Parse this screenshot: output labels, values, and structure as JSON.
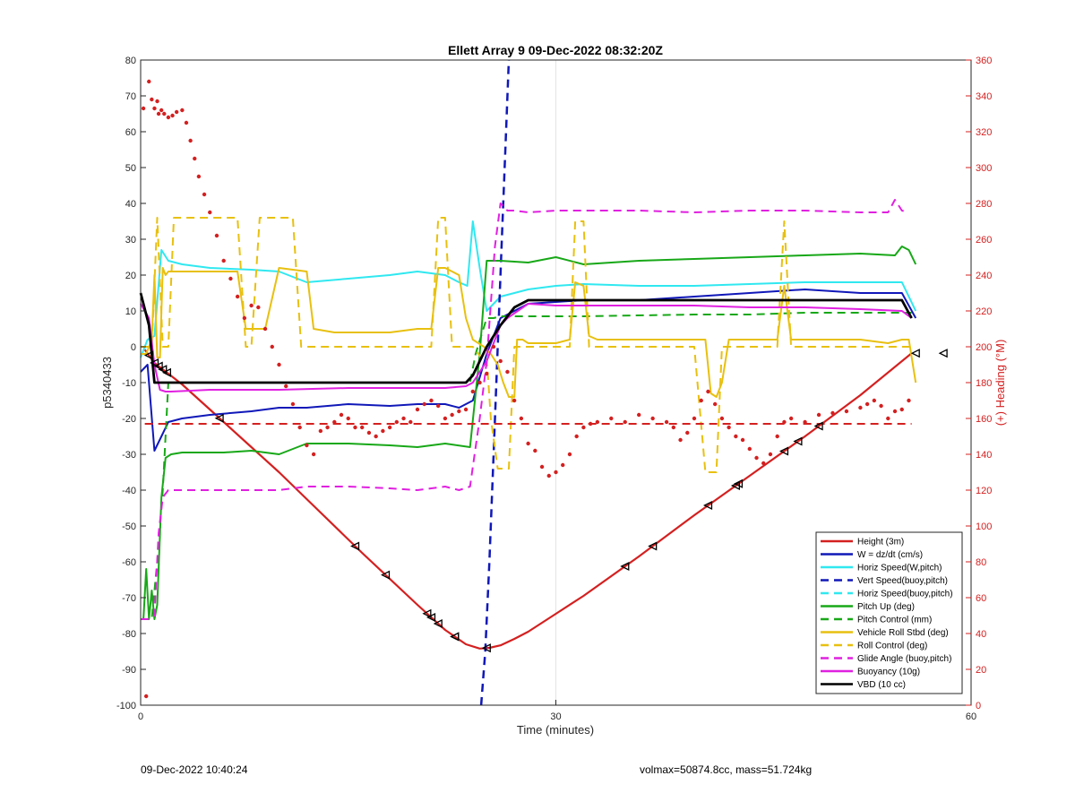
{
  "chart_data": {
    "type": "line",
    "title": "Ellett Array 9 09-Dec-2022 08:32:20Z",
    "xlabel": "Time (minutes)",
    "ylabel": "p5340433",
    "y2label": "(+) Heading (°M)",
    "xlim": [
      0,
      60
    ],
    "ylim": [
      -100,
      80
    ],
    "y2lim": [
      0,
      360
    ],
    "x_ticks": [
      0,
      30,
      60
    ],
    "y_ticks": [
      -100,
      -90,
      -80,
      -70,
      -60,
      -50,
      -40,
      -30,
      -20,
      -10,
      0,
      10,
      20,
      30,
      40,
      50,
      60,
      70,
      80
    ],
    "y2_ticks": [
      0,
      20,
      40,
      60,
      80,
      100,
      120,
      140,
      160,
      180,
      200,
      220,
      240,
      260,
      280,
      300,
      320,
      340,
      360
    ],
    "grid": "x only (at 30)",
    "legend_position": "bottom-right",
    "colors": {
      "red": "#d42020",
      "blue": "#1018b8",
      "cyan": "#30e8f0",
      "green": "#18a818",
      "yellow": "#e8c010",
      "magenta": "#e020e0",
      "black": "#000000"
    },
    "series": [
      {
        "name": "Height (3m)",
        "color": "#d42020",
        "style": "solid",
        "width": 2.2,
        "x": [
          0.3,
          1.0,
          2.0,
          3.0,
          5.0,
          8.0,
          10.0,
          12.0,
          16.0,
          20.0,
          22.0,
          23.5,
          24.5,
          25.2,
          26.0,
          27.0,
          28.0,
          30.0,
          32.0,
          36.0,
          40.0,
          44.0,
          48.0,
          52.0,
          55.7
        ],
        "y": [
          -0.8,
          -4.5,
          -7.5,
          -10.5,
          -17.5,
          -28.0,
          -35.0,
          -42.5,
          -57.5,
          -72.0,
          -79.0,
          -83.0,
          -84.2,
          -84.0,
          -83.3,
          -81.5,
          -79.5,
          -74.5,
          -69.5,
          -58.5,
          -47.0,
          -36.0,
          -25.0,
          -13.5,
          -1.8
        ]
      },
      {
        "name": "W = dz/dt (cm/s)",
        "color": "#1018b8",
        "style": "solid",
        "width": 2,
        "x": [
          0.0,
          0.5,
          1.0,
          1.5,
          2.0,
          3.0,
          5.0,
          8.0,
          10.0,
          12.0,
          15.0,
          18.0,
          20.0,
          22.0,
          23.0,
          24.0,
          25.0,
          26.0,
          28.0,
          32.0,
          36.0,
          40.0,
          44.0,
          48.0,
          52.0,
          55.0,
          56.0
        ],
        "y": [
          -7,
          -5,
          -29,
          -25,
          -21,
          -20,
          -19,
          -18,
          -17,
          -17,
          -16,
          -16.5,
          -16,
          -16,
          -17,
          -15,
          -2,
          8,
          12,
          13,
          13,
          14,
          15,
          16,
          15,
          15,
          8
        ]
      },
      {
        "name": "Horiz Speed(W,pitch)",
        "color": "#30e8f0",
        "style": "solid",
        "width": 2,
        "x": [
          0.0,
          0.5,
          1.0,
          1.5,
          2.0,
          3.0,
          5.0,
          8.0,
          10.0,
          12.0,
          15.0,
          18.0,
          20.0,
          22.0,
          23.0,
          23.6,
          24.0,
          24.5,
          25.0,
          26.0,
          27.0,
          28.0,
          30.0,
          32.0,
          36.0,
          40.0,
          44.0,
          48.0,
          52.0,
          55.0,
          56.0
        ],
        "y": [
          -3,
          2,
          3,
          27,
          24,
          23,
          22,
          21.5,
          21,
          18,
          19,
          20,
          21,
          20,
          18,
          17,
          35,
          22,
          10,
          14,
          15,
          16,
          17,
          17.5,
          17,
          17,
          17.5,
          18,
          18,
          18,
          10
        ]
      },
      {
        "name": "Vert Speed(buoy,pitch)",
        "color": "#1018b8",
        "style": "dashed",
        "width": 2.5,
        "x": [
          24.6,
          24.9,
          25.2,
          25.5,
          25.8,
          26.1,
          26.4,
          26.6
        ],
        "y": [
          -100,
          -85,
          -60,
          -30,
          0,
          30,
          60,
          80
        ]
      },
      {
        "name": "Horiz Speed(buoy,pitch)",
        "color": "#30e8f0",
        "style": "dashed",
        "width": 2,
        "x": [],
        "y": []
      },
      {
        "name": "Pitch Up (deg)",
        "color": "#18a818",
        "style": "solid",
        "width": 2,
        "x": [
          0.0,
          0.2,
          0.4,
          0.6,
          0.8,
          1.0,
          1.2,
          1.5,
          1.8,
          2.2,
          3.0,
          6.0,
          8.0,
          10.0,
          12.0,
          15.0,
          18.0,
          20.0,
          22.0,
          23.8,
          24.5,
          25.0,
          25.5,
          26.0,
          28.0,
          30.0,
          32.0,
          36.0,
          40.0,
          44.0,
          48.0,
          52.0,
          54.5,
          55.0,
          55.5,
          56.0
        ],
        "y": [
          -76,
          -76,
          -62,
          -76,
          -68,
          -76,
          -72,
          -42,
          -31,
          -30,
          -29.5,
          -29.5,
          -29,
          -30,
          -27,
          -27,
          -27.5,
          -28,
          -27,
          -28,
          -2,
          24,
          24,
          24,
          23.5,
          25,
          23,
          24,
          24.5,
          25,
          25.5,
          26,
          25.5,
          28,
          27,
          23
        ]
      },
      {
        "name": "Pitch Control (mm)",
        "color": "#18a818",
        "style": "dashed",
        "width": 2,
        "x": [
          0.0,
          0.4,
          0.8,
          1.2,
          1.6,
          2.0,
          5.0,
          10.0,
          15.0,
          20.0,
          23.0,
          23.8,
          24.2,
          25.0,
          25.5,
          26.0,
          28.0,
          32.0,
          40.0,
          44.0,
          48.0,
          52.0,
          55.7
        ],
        "y": [
          -76,
          -76,
          -76,
          -60,
          -40,
          -10,
          -10,
          -10,
          -10,
          -10,
          -10,
          -10,
          -2,
          8,
          8,
          8.5,
          8.5,
          8.5,
          9,
          9,
          9.5,
          9.5,
          9.5
        ]
      },
      {
        "name": "Vehicle Roll Stbd (deg)",
        "color": "#e8c010",
        "style": "solid",
        "width": 2,
        "x": [
          0.0,
          0.4,
          0.8,
          1.0,
          1.2,
          1.4,
          1.6,
          1.8,
          2.0,
          3.0,
          5.0,
          7.0,
          7.6,
          8.0,
          9.0,
          10.0,
          12.0,
          12.5,
          14.0,
          16.0,
          18.0,
          20.0,
          21.0,
          21.5,
          22.0,
          23.0,
          23.5,
          24.0,
          24.8,
          25.3,
          25.8,
          26.2,
          26.6,
          27.0,
          27.2,
          27.6,
          28.0,
          30.0,
          31.0,
          31.4,
          32.0,
          32.4,
          33.0,
          36.0,
          40.0,
          40.8,
          41.2,
          41.6,
          42.0,
          42.5,
          44.0,
          46.0,
          46.5,
          47.0,
          48.0,
          50.0,
          52.0,
          54.0,
          55.0,
          55.5,
          56.0
        ],
        "y": [
          -2,
          -2,
          2,
          20,
          -3,
          -3,
          22,
          20,
          21,
          21,
          21,
          21,
          5,
          5,
          5,
          22,
          21,
          5,
          4,
          4,
          4,
          5,
          5,
          22,
          22,
          20,
          8,
          2,
          0,
          -2,
          -5,
          -10,
          -14,
          -14,
          2,
          2,
          1,
          1,
          2,
          18,
          17,
          3,
          2,
          2,
          2,
          2,
          -13,
          -14,
          -10,
          2,
          2,
          2,
          17,
          2,
          2,
          2,
          2,
          1,
          2,
          2,
          -10
        ]
      },
      {
        "name": "Roll Control (deg)",
        "color": "#e8c010",
        "style": "dashed",
        "width": 2,
        "x": [
          0.0,
          0.8,
          1.2,
          1.6,
          2.0,
          2.4,
          3.0,
          5.0,
          7.0,
          7.6,
          8.0,
          8.6,
          9.0,
          11.0,
          11.6,
          12.0,
          14.0,
          18.0,
          20.0,
          21.0,
          21.5,
          22.0,
          22.5,
          23.0,
          24.0,
          24.6,
          25.0,
          25.3,
          25.8,
          26.2,
          26.6,
          27.0,
          27.2,
          27.6,
          28.0,
          30.0,
          31.0,
          31.4,
          32.0,
          32.4,
          33.0,
          36.0,
          40.0,
          40.8,
          41.2,
          41.6,
          42.0,
          42.5,
          44.0,
          46.0,
          46.5,
          47.0,
          47.5,
          50.0,
          52.0,
          54.0,
          55.0,
          55.7
        ],
        "y": [
          0,
          0,
          36,
          0,
          0,
          36,
          36,
          36,
          36,
          0,
          0,
          36,
          36,
          36,
          0,
          0,
          0,
          0,
          0,
          0,
          36,
          36,
          0,
          0,
          0,
          -3,
          -3,
          -20,
          -34,
          -34,
          -34,
          0,
          0,
          0,
          0,
          0,
          0,
          35,
          35,
          0,
          0,
          0,
          0,
          -35,
          -35,
          -35,
          0,
          0,
          0,
          0,
          35,
          0,
          0,
          0,
          0,
          0,
          0,
          0
        ]
      },
      {
        "name": "Glide Angle (buoy,pitch)",
        "color": "#e020e0",
        "style": "dashed",
        "width": 2,
        "x": [
          0.0,
          0.5,
          1.0,
          1.3,
          1.6,
          2.0,
          3.0,
          5.0,
          8.0,
          10.0,
          12.0,
          15.0,
          18.0,
          20.0,
          22.0,
          23.0,
          23.8,
          24.5,
          25.0,
          25.6,
          26.0,
          26.5,
          27.0,
          28.0,
          30.0,
          32.0,
          36.0,
          40.0,
          44.0,
          48.0,
          52.0,
          54.0,
          54.5,
          55.0,
          55.5
        ],
        "y": [
          -76,
          -76,
          -75,
          -52,
          -42,
          -40,
          -40,
          -40,
          -40,
          -40,
          -39,
          -39,
          -39.5,
          -40,
          -39,
          -40,
          -39,
          -20,
          -4,
          28,
          40,
          38,
          38,
          37.5,
          38,
          38,
          38,
          37.5,
          38,
          38,
          37.5,
          37.5,
          41,
          38,
          37.5
        ]
      },
      {
        "name": "Buoyancy (10g)",
        "color": "#e020e0",
        "style": "solid",
        "width": 2,
        "x": [
          0.0,
          0.6,
          1.0,
          1.4,
          1.8,
          2.2,
          5.0,
          10.0,
          15.0,
          20.0,
          22.0,
          23.5,
          24.0,
          25.0,
          26.0,
          26.5,
          28.0,
          30.0,
          36.0,
          40.0,
          44.0,
          48.0,
          52.0,
          55.0,
          55.7
        ],
        "y": [
          12,
          8,
          -5,
          -12,
          -12.5,
          -12.5,
          -12,
          -12,
          -11.5,
          -11.5,
          -11.5,
          -11,
          -10,
          -4,
          6,
          8,
          12,
          11.5,
          11.5,
          11.5,
          11,
          11,
          10.5,
          10,
          8
        ]
      },
      {
        "name": "VBD (10 cc)",
        "color": "#000000",
        "style": "solid",
        "width": 2.8,
        "x": [
          0.0,
          0.6,
          1.0,
          1.4,
          2.0,
          5.0,
          10.0,
          15.0,
          20.0,
          23.5,
          24.0,
          25.0,
          26.0,
          27.0,
          28.0,
          30.0,
          36.0,
          40.0,
          48.0,
          55.0,
          55.7
        ],
        "y": [
          15,
          6,
          -10,
          -10,
          -10,
          -10,
          -10,
          -10,
          -10,
          -10,
          -8,
          0,
          6,
          11,
          13,
          13,
          13,
          13,
          13,
          13,
          8
        ]
      }
    ],
    "heading": {
      "axis": "right",
      "unit": "°M",
      "color": "#d42020",
      "points": {
        "x": [
          0.2,
          0.4,
          0.6,
          0.8,
          1.0,
          1.2,
          1.3,
          1.5,
          1.7,
          2.0,
          2.3,
          2.6,
          3.0,
          3.3,
          3.6,
          3.9,
          4.2,
          4.6,
          5.0,
          5.5,
          6.0,
          6.5,
          7.0,
          7.5,
          8.0,
          8.5,
          9.0,
          9.5,
          10.0,
          10.5,
          11.0,
          11.5,
          12.0,
          12.5,
          13.0,
          13.5,
          14.0,
          14.5,
          15.0,
          15.5,
          16.0,
          16.5,
          17.0,
          17.5,
          18.0,
          18.5,
          19.0,
          19.5,
          20.0,
          20.5,
          21.0,
          21.5,
          22.0,
          22.5,
          23.0,
          23.5,
          24.0,
          24.5,
          25.0,
          25.5,
          26.0,
          26.5,
          27.0,
          27.5,
          28.0,
          28.5,
          29.0,
          29.5,
          30.0,
          30.5,
          31.0,
          31.5,
          32.0,
          32.5,
          33.0,
          34.0,
          35.0,
          36.0,
          37.0,
          38.0,
          38.5,
          39.0,
          39.5,
          40.0,
          40.5,
          41.0,
          41.5,
          42.0,
          42.5,
          43.0,
          43.5,
          44.0,
          44.5,
          45.0,
          45.5,
          46.0,
          46.5,
          47.0,
          48.0,
          49.0,
          50.0,
          51.0,
          52.0,
          52.5,
          53.0,
          53.5,
          54.0,
          54.5,
          55.0,
          55.5
        ],
        "y": [
          333,
          5,
          348,
          338,
          333,
          337,
          330,
          332,
          330,
          328,
          329,
          331,
          332,
          325,
          315,
          305,
          295,
          285,
          275,
          262,
          248,
          238,
          228,
          216,
          223,
          222,
          210,
          200,
          190,
          178,
          168,
          155,
          145,
          140,
          153,
          155,
          158,
          162,
          160,
          155,
          155,
          152,
          150,
          153,
          155,
          158,
          160,
          158,
          165,
          168,
          170,
          167,
          160,
          162,
          164,
          165,
          175,
          180,
          185,
          200,
          192,
          186,
          170,
          160,
          146,
          142,
          133,
          128,
          130,
          134,
          140,
          150,
          155,
          157,
          158,
          160,
          158,
          162,
          160,
          158,
          155,
          148,
          152,
          160,
          170,
          175,
          168,
          160,
          155,
          150,
          148,
          143,
          138,
          135,
          140,
          150,
          158,
          160,
          158,
          162,
          163,
          164,
          166,
          168,
          170,
          167,
          160,
          164,
          165,
          170
        ]
      },
      "reference_line": {
        "value": 157,
        "style": "dashed"
      }
    },
    "markers": {
      "shape": "triangle",
      "color": "#000000",
      "on_series": "Height (3m)",
      "x": [
        0.6,
        1.0,
        1.3,
        1.6,
        1.9,
        5.7,
        15.5,
        17.7,
        22.7,
        41.0,
        25.0,
        35.0,
        37.0,
        43.0,
        47.5,
        49.0,
        56.0,
        20.7,
        21.0,
        21.5,
        22.7,
        43.2,
        46.5,
        58.0
      ]
    }
  },
  "footer": {
    "left": "09-Dec-2022 10:40:24",
    "right": "volmax=50874.8cc, mass=51.724kg"
  }
}
